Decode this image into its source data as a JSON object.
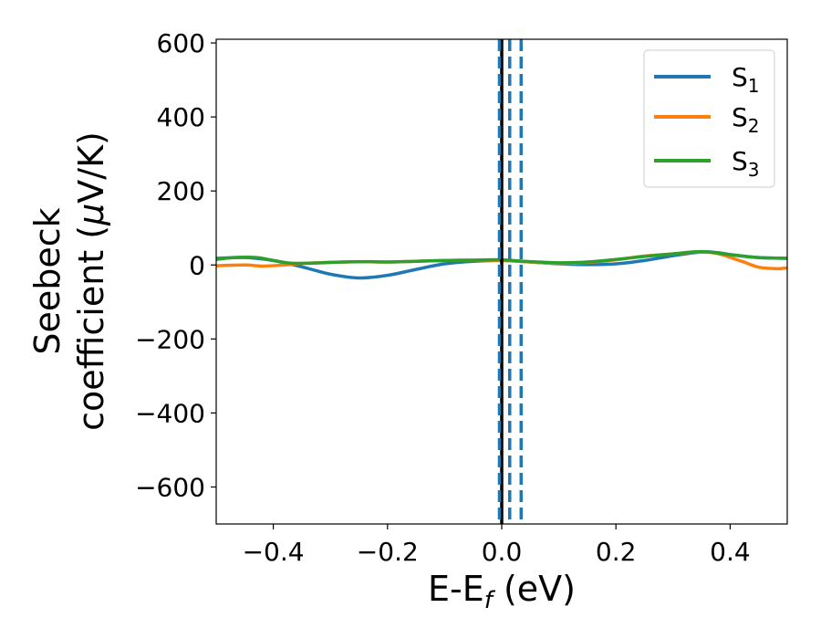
{
  "chart_data": {
    "type": "line",
    "xlabel": {
      "main": "E-E",
      "sub": "f",
      "unit": " (eV)"
    },
    "ylabel": {
      "line1": "Seebeck",
      "line2_prefix": "coefficient  (",
      "mu": "μ",
      "line2_suffix": "V/K)"
    },
    "xlim": [
      -0.5,
      0.5
    ],
    "ylim": [
      -700,
      610
    ],
    "xticks": [
      -0.4,
      -0.2,
      0.0,
      0.2,
      0.4
    ],
    "xtick_labels": [
      "−0.4",
      "−0.2",
      "0.0",
      "0.2",
      "0.4"
    ],
    "yticks": [
      -600,
      -400,
      -200,
      0,
      200,
      400,
      600
    ],
    "ytick_labels": [
      "−600",
      "−400",
      "−200",
      "0",
      "200",
      "400",
      "600"
    ],
    "legend": "top-right",
    "series": [
      {
        "name": "S",
        "sub": "1",
        "color": "#1f77b4",
        "x": [
          -0.5,
          -0.45,
          -0.4,
          -0.35,
          -0.3,
          -0.25,
          -0.2,
          -0.15,
          -0.1,
          -0.05,
          0.0,
          0.05,
          0.1,
          0.15,
          0.2,
          0.25,
          0.3,
          0.35,
          0.38,
          0.4,
          0.45,
          0.5
        ],
        "y": [
          18,
          20,
          12,
          -5,
          -25,
          -35,
          -28,
          -12,
          3,
          10,
          12,
          8,
          3,
          1,
          3,
          12,
          25,
          35,
          33,
          28,
          20,
          18
        ]
      },
      {
        "name": "S",
        "sub": "2",
        "color": "#ff7f0e",
        "x": [
          -0.5,
          -0.45,
          -0.42,
          -0.38,
          -0.35,
          -0.3,
          -0.25,
          -0.2,
          -0.15,
          -0.1,
          -0.05,
          0.0,
          0.05,
          0.1,
          0.15,
          0.2,
          0.25,
          0.3,
          0.35,
          0.38,
          0.42,
          0.45,
          0.48,
          0.5
        ],
        "y": [
          -2,
          0,
          -3,
          0,
          4,
          7,
          9,
          8,
          10,
          12,
          13,
          12,
          8,
          4,
          7,
          14,
          24,
          30,
          35,
          30,
          10,
          -6,
          -10,
          -8
        ]
      },
      {
        "name": "S",
        "sub": "3",
        "color": "#2ca02c",
        "x": [
          -0.5,
          -0.47,
          -0.43,
          -0.4,
          -0.37,
          -0.33,
          -0.28,
          -0.23,
          -0.2,
          -0.15,
          -0.1,
          -0.05,
          0.0,
          0.05,
          0.1,
          0.15,
          0.2,
          0.25,
          0.3,
          0.35,
          0.4,
          0.45,
          0.5
        ],
        "y": [
          15,
          20,
          20,
          12,
          5,
          5,
          8,
          9,
          8,
          10,
          12,
          13,
          14,
          9,
          6,
          8,
          15,
          23,
          30,
          36,
          28,
          20,
          18
        ]
      }
    ],
    "vlines": [
      {
        "x": 0.0,
        "color": "#000000",
        "style": "solid"
      },
      {
        "x": -0.004,
        "color": "#1f77b4",
        "style": "dashed"
      },
      {
        "x": 0.014,
        "color": "#1f77b4",
        "style": "dashed"
      },
      {
        "x": 0.034,
        "color": "#1f77b4",
        "style": "dashed"
      }
    ]
  }
}
